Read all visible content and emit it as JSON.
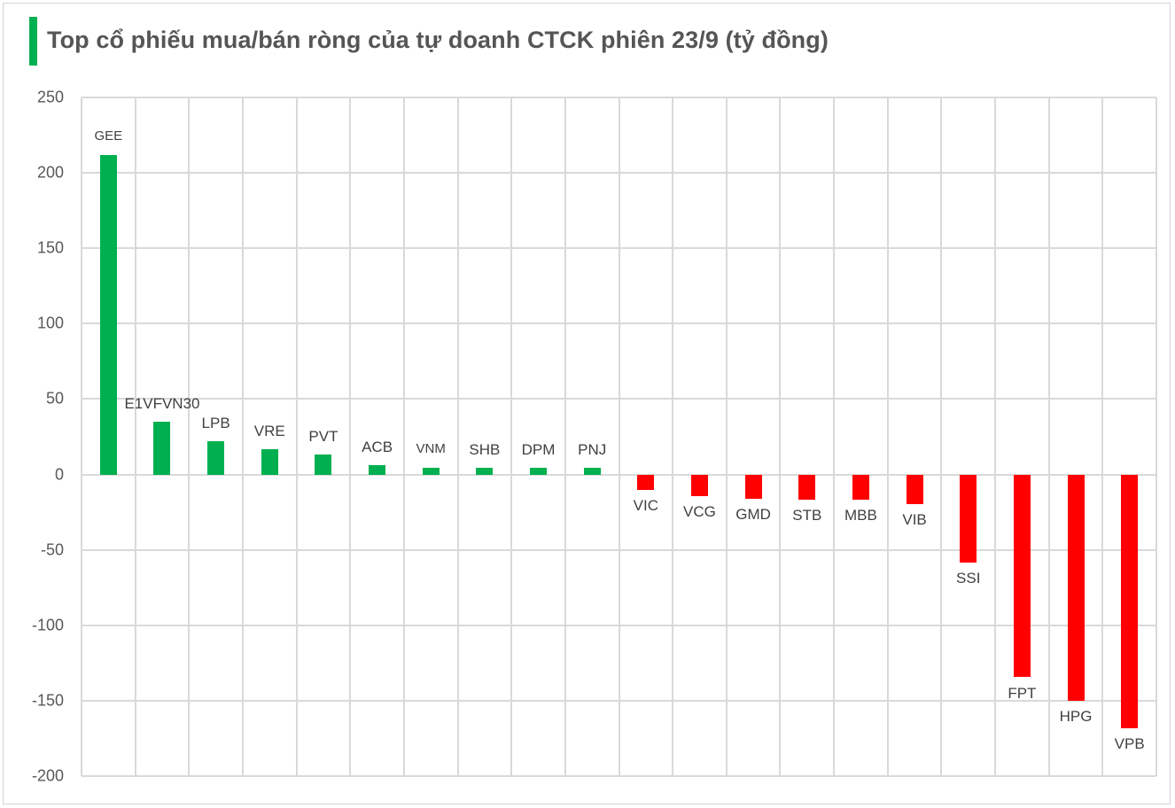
{
  "title": "Top cổ phiếu mua/bán ròng của tự doanh CTCK phiên 23/9 (tỷ đồng)",
  "colors": {
    "positive": "#00b050",
    "negative": "#ff0000",
    "accent_bar": "#00b050",
    "grid": "#d9d9d9",
    "text": "#595959"
  },
  "chart_data": {
    "type": "bar",
    "title": "Top cổ phiếu mua/bán ròng của tự doanh CTCK phiên 23/9 (tỷ đồng)",
    "xlabel": "",
    "ylabel": "",
    "ylim": [
      -200,
      250
    ],
    "yticks": [
      250,
      200,
      150,
      100,
      50,
      0,
      -50,
      -100,
      -150,
      -200
    ],
    "grid": true,
    "legend": null,
    "categories": [
      "GEE",
      "E1VFVN30",
      "LPB",
      "VRE",
      "PVT",
      "ACB",
      "VNM",
      "SHB",
      "DPM",
      "PNJ",
      "VIC",
      "VCG",
      "GMD",
      "STB",
      "MBB",
      "VIB",
      "SSI",
      "FPT",
      "HPG",
      "VPB"
    ],
    "values": [
      212,
      35,
      22,
      16.5,
      13,
      6,
      4.5,
      4.5,
      4.5,
      4.5,
      -10,
      -14.5,
      -16,
      -16.5,
      -17,
      -19.5,
      -58.5,
      -134.5,
      -150,
      -168
    ]
  }
}
